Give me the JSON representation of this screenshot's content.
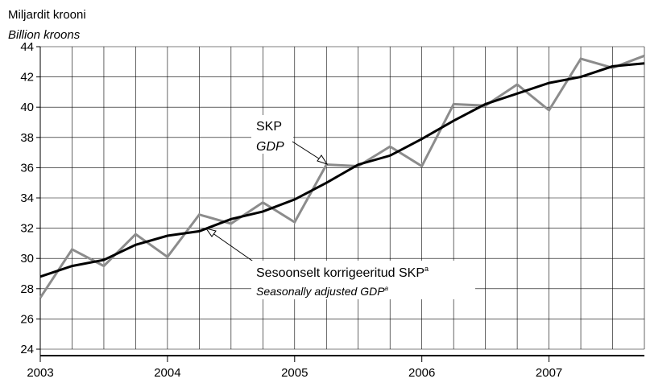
{
  "chart_data": {
    "type": "line",
    "ylabel_et": "Miljardit krooni",
    "ylabel_en": "Billion kroons",
    "ylim": [
      24,
      44
    ],
    "yticks": [
      24,
      26,
      28,
      30,
      32,
      34,
      36,
      38,
      40,
      42,
      44
    ],
    "xlim": [
      2003.0,
      2007.75
    ],
    "xticks": [
      "2003",
      "2004",
      "2005",
      "2006",
      "2007"
    ],
    "grid": true,
    "x": [
      2003.0,
      2003.25,
      2003.5,
      2003.75,
      2004.0,
      2004.25,
      2004.5,
      2004.75,
      2005.0,
      2005.25,
      2005.5,
      2005.75,
      2006.0,
      2006.25,
      2006.5,
      2006.75,
      2007.0,
      2007.25,
      2007.5,
      2007.75
    ],
    "series": [
      {
        "name": "SKP",
        "name_en": "GDP",
        "color": "#8c8c8c",
        "values": [
          27.4,
          30.6,
          29.5,
          31.6,
          30.1,
          32.9,
          32.3,
          33.7,
          32.4,
          36.2,
          36.1,
          37.4,
          36.1,
          40.2,
          40.1,
          41.5,
          39.8,
          43.2,
          42.6,
          43.4
        ]
      },
      {
        "name": "Sesoonselt korrigeeritud SKP",
        "name_sup": "a",
        "name_en": "Seasonally adjusted GDP",
        "name_en_sup": "a",
        "color": "#000000",
        "values": [
          28.8,
          29.5,
          29.9,
          30.9,
          31.5,
          31.8,
          32.6,
          33.1,
          33.9,
          35.0,
          36.2,
          36.8,
          37.9,
          39.1,
          40.2,
          40.9,
          41.6,
          42.0,
          42.7,
          42.9
        ]
      }
    ]
  }
}
